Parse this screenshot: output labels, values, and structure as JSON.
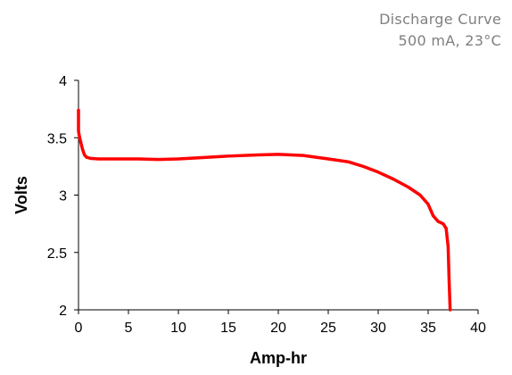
{
  "chart_data": {
    "type": "line",
    "title": "Discharge Curve",
    "subtitle": "500 mA, 23°C",
    "xlabel": "Amp-hr",
    "ylabel": "Volts",
    "xlim": [
      0,
      40
    ],
    "ylim": [
      2,
      4
    ],
    "xticks": [
      "0",
      "5",
      "10",
      "15",
      "20",
      "25",
      "30",
      "35",
      "40"
    ],
    "yticks": [
      "2",
      "2.5",
      "3",
      "3.5",
      "4"
    ],
    "grid": false,
    "legend": "none",
    "series": [
      {
        "color": "#ff0000",
        "x": [
          0,
          0,
          0.05,
          0.2,
          0.4,
          0.6,
          0.8,
          1.2,
          2,
          4,
          6,
          8,
          10,
          12,
          15,
          18,
          20,
          22.5,
          25,
          27,
          28.5,
          30,
          31.5,
          33,
          34.2,
          35,
          35.5,
          36,
          36.5,
          36.8,
          37,
          37.1,
          37.2
        ],
        "y": [
          3.74,
          3.56,
          3.53,
          3.47,
          3.4,
          3.35,
          3.33,
          3.32,
          3.315,
          3.315,
          3.315,
          3.31,
          3.315,
          3.325,
          3.34,
          3.35,
          3.355,
          3.345,
          3.315,
          3.29,
          3.25,
          3.2,
          3.14,
          3.07,
          3.0,
          2.92,
          2.82,
          2.77,
          2.75,
          2.71,
          2.55,
          2.25,
          2.0
        ]
      }
    ]
  }
}
